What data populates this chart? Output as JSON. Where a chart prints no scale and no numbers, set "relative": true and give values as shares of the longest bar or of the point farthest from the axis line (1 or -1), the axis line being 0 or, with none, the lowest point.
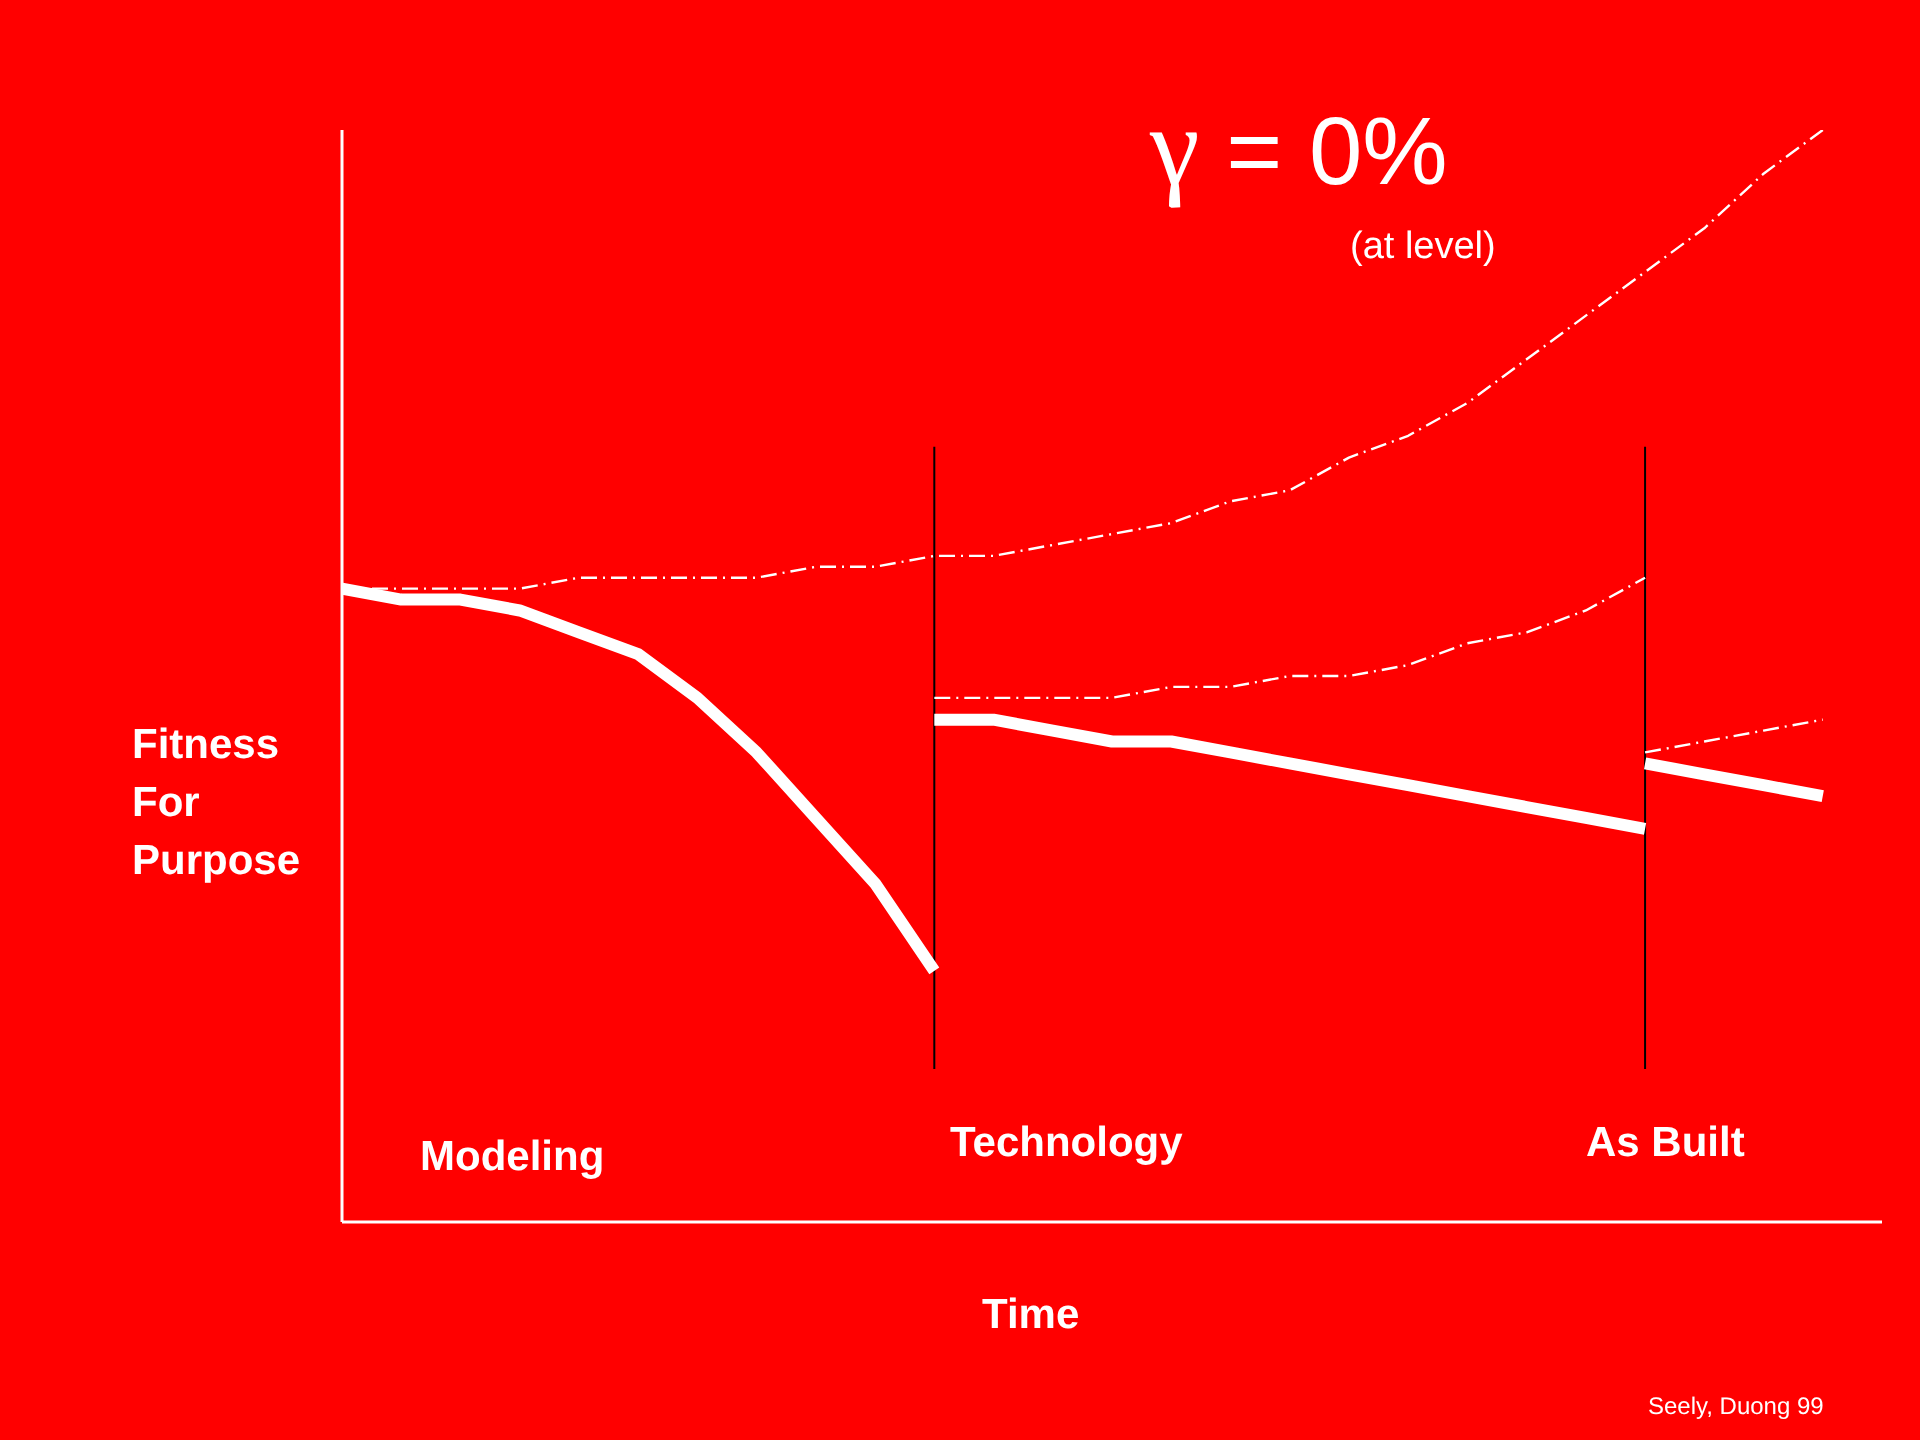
{
  "chart_data": {
    "type": "line",
    "title": "γ = 0%",
    "subtitle": "(at level)",
    "xlabel": "Time",
    "ylabel": "Fitness For Purpose",
    "relative": true,
    "categories": [
      null,
      null,
      null,
      null,
      null,
      null,
      null,
      null,
      null,
      null,
      null,
      null,
      null,
      null,
      null,
      null,
      null,
      null,
      null,
      null,
      null,
      null,
      null,
      null,
      null,
      null
    ],
    "series": [
      {
        "color": "#ffffff",
        "line_style": "solid",
        "values": [
          0.58,
          0.57,
          0.57,
          0.56,
          0.54,
          0.52,
          0.48,
          0.43,
          0.37,
          0.31,
          0.23,
          null,
          null,
          null,
          null,
          null,
          null,
          null,
          null,
          null,
          null,
          null,
          null,
          null,
          null,
          null
        ]
      },
      {
        "color": "#ffffff",
        "line_style": "solid",
        "values": [
          null,
          null,
          null,
          null,
          null,
          null,
          null,
          null,
          null,
          null,
          0.46,
          0.46,
          0.45,
          0.44,
          0.44,
          0.43,
          0.42,
          0.41,
          0.4,
          0.39,
          0.38,
          0.37,
          0.36,
          null,
          null,
          null
        ]
      },
      {
        "color": "#ffffff",
        "line_style": "solid",
        "values": [
          null,
          null,
          null,
          null,
          null,
          null,
          null,
          null,
          null,
          null,
          null,
          null,
          null,
          null,
          null,
          null,
          null,
          null,
          null,
          null,
          null,
          null,
          0.42,
          0.41,
          0.4,
          0.39
        ]
      },
      {
        "color": "#ffffff",
        "line_style": "dashed",
        "values": [
          0.58,
          0.58,
          0.58,
          0.58,
          0.59,
          0.59,
          0.59,
          0.59,
          0.6,
          0.6,
          0.61,
          0.61,
          0.62,
          0.63,
          0.64,
          0.66,
          0.67,
          0.7,
          0.72,
          0.75,
          0.79,
          0.83,
          0.87,
          0.91,
          0.96,
          1.0
        ]
      },
      {
        "color": "#ffffff",
        "line_style": "dashed",
        "values": [
          null,
          null,
          null,
          null,
          null,
          null,
          null,
          null,
          null,
          null,
          0.48,
          0.48,
          0.48,
          0.48,
          0.49,
          0.49,
          0.5,
          0.5,
          0.51,
          0.53,
          0.54,
          0.56,
          0.59,
          null,
          null,
          null
        ]
      },
      {
        "color": "#ffffff",
        "line_style": "dashed",
        "values": [
          null,
          null,
          null,
          null,
          null,
          null,
          null,
          null,
          null,
          null,
          null,
          null,
          null,
          null,
          null,
          null,
          null,
          null,
          null,
          null,
          null,
          null,
          0.43,
          0.44,
          0.45,
          0.46
        ]
      }
    ],
    "annotations": [
      "Modeling",
      "Technology",
      "As Built",
      "Seely, Duong  99"
    ]
  }
}
